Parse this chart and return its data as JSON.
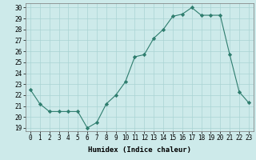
{
  "x": [
    0,
    1,
    2,
    3,
    4,
    5,
    6,
    7,
    8,
    9,
    10,
    11,
    12,
    13,
    14,
    15,
    16,
    17,
    18,
    19,
    20,
    21,
    22,
    23
  ],
  "y": [
    22.5,
    21.2,
    20.5,
    20.5,
    20.5,
    20.5,
    19.0,
    19.5,
    21.2,
    22.0,
    23.2,
    25.5,
    25.7,
    27.2,
    28.0,
    29.2,
    29.4,
    30.0,
    29.3,
    29.3,
    29.3,
    25.7,
    22.3,
    21.3
  ],
  "title": "",
  "xlabel": "Humidex (Indice chaleur)",
  "ylabel": "",
  "ylim": [
    18.7,
    30.4
  ],
  "xlim": [
    -0.5,
    23.5
  ],
  "yticks": [
    19,
    20,
    21,
    22,
    23,
    24,
    25,
    26,
    27,
    28,
    29,
    30
  ],
  "xticks": [
    0,
    1,
    2,
    3,
    4,
    5,
    6,
    7,
    8,
    9,
    10,
    11,
    12,
    13,
    14,
    15,
    16,
    17,
    18,
    19,
    20,
    21,
    22,
    23
  ],
  "line_color": "#2e7d6e",
  "marker": "D",
  "marker_size": 2.2,
  "background_color": "#cdeaea",
  "grid_color": "#aad4d4",
  "label_fontsize": 6.5,
  "tick_fontsize": 5.5
}
